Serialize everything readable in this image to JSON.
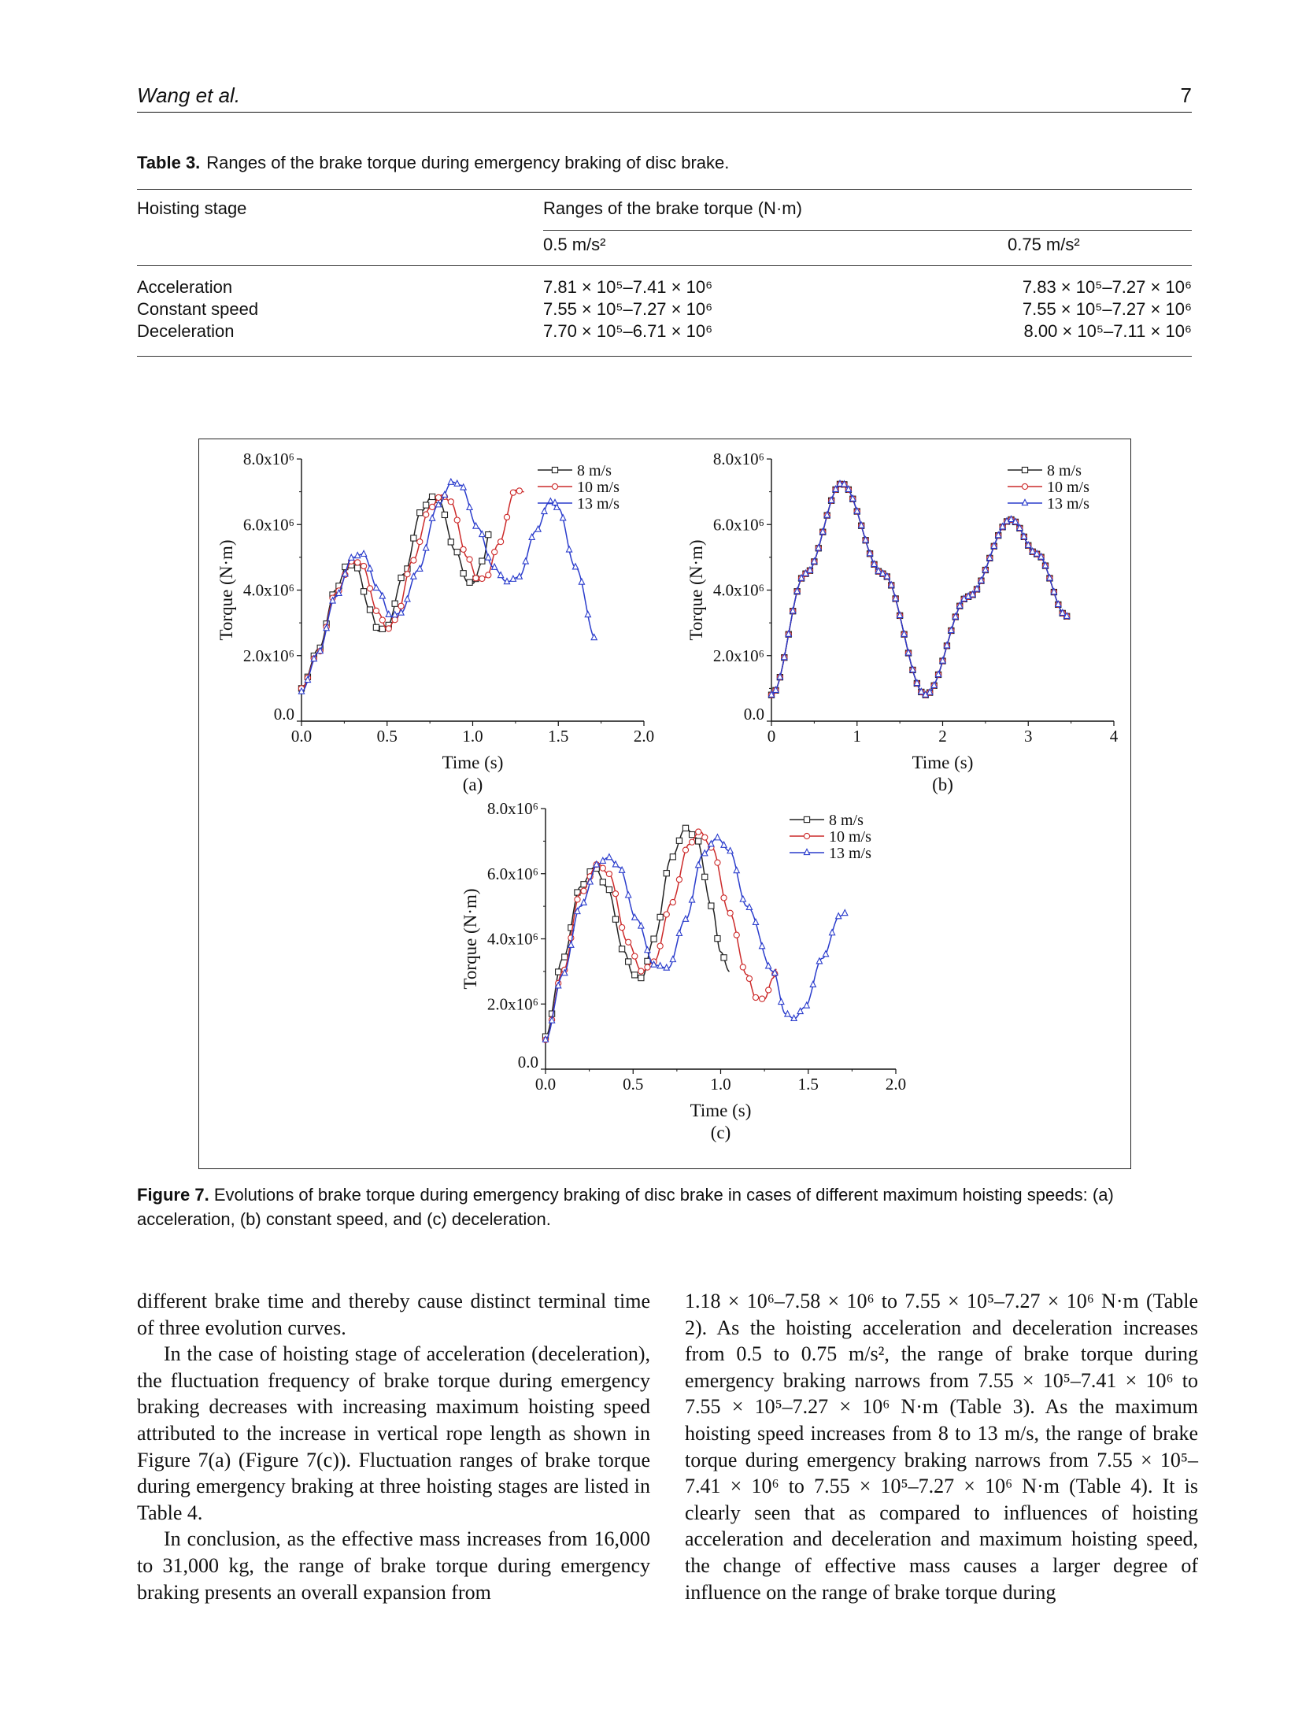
{
  "header": {
    "author": "Wang et al.",
    "page_number": "7"
  },
  "table3": {
    "label": "Table 3.",
    "caption": "Ranges of the brake torque during emergency braking of disc brake.",
    "col_stage": "Hoisting stage",
    "col_range": "Ranges of the brake torque (N·m)",
    "sub_a": "0.5 m/s²",
    "sub_b": "0.75 m/s²",
    "rows": [
      {
        "stage": "Acceleration",
        "a": "7.81 × 10⁵–7.41 × 10⁶",
        "b": "7.83 × 10⁵–7.27 × 10⁶"
      },
      {
        "stage": "Constant speed",
        "a": "7.55 × 10⁵–7.27 × 10⁶",
        "b": "7.55 × 10⁵–7.27 × 10⁶"
      },
      {
        "stage": "Deceleration",
        "a": "7.70 × 10⁵–6.71 × 10⁶",
        "b": "8.00 × 10⁵–7.11 × 10⁶"
      }
    ]
  },
  "figure7": {
    "label": "Figure 7.",
    "caption": "Evolutions of brake torque during emergency braking of disc brake in cases of different maximum hoisting speeds: (a) acceleration, (b) constant speed, and (c) deceleration."
  },
  "chart_data": [
    {
      "type": "line",
      "panel": "(a)",
      "xlabel": "Time (s)",
      "ylabel": "Torque (N·m)",
      "xlim": [
        0,
        2.0
      ],
      "ylim": [
        0,
        8000000
      ],
      "xticks": [
        "0.0",
        "0.5",
        "1.0",
        "1.5",
        "2.0"
      ],
      "yticks": [
        "0.0",
        "2.0x10⁶",
        "4.0x10⁶",
        "6.0x10⁶",
        "8.0x10⁶"
      ],
      "legend_position": "top-right",
      "series": [
        {
          "name": "8 m/s",
          "color": "#222222",
          "marker": "square",
          "t_end": 1.1,
          "waypoints": [
            [
              0,
              1000000.0
            ],
            [
              0.1,
              2200000.0
            ],
            [
              0.2,
              4000000.0
            ],
            [
              0.27,
              4800000.0
            ],
            [
              0.32,
              4700000.0
            ],
            [
              0.4,
              3400000.0
            ],
            [
              0.45,
              2750000.0
            ],
            [
              0.5,
              2900000.0
            ],
            [
              0.6,
              4500000.0
            ],
            [
              0.7,
              6400000.0
            ],
            [
              0.76,
              6850000.0
            ],
            [
              0.8,
              6750000.0
            ],
            [
              0.9,
              5200000.0
            ],
            [
              0.97,
              4250000.0
            ],
            [
              1.0,
              4200000.0
            ],
            [
              1.06,
              4900000.0
            ],
            [
              1.1,
              5800000.0
            ]
          ]
        },
        {
          "name": "10 m/s",
          "color": "#cc2a2a",
          "marker": "circle",
          "t_end": 1.3,
          "waypoints": [
            [
              0,
              1000000.0
            ],
            [
              0.1,
              2100000.0
            ],
            [
              0.2,
              3900000.0
            ],
            [
              0.3,
              4900000.0
            ],
            [
              0.35,
              4800000.0
            ],
            [
              0.45,
              3300000.0
            ],
            [
              0.5,
              2800000.0
            ],
            [
              0.55,
              3100000.0
            ],
            [
              0.65,
              4900000.0
            ],
            [
              0.75,
              6500000.0
            ],
            [
              0.82,
              6900000.0
            ],
            [
              0.87,
              6700000.0
            ],
            [
              0.97,
              5000000.0
            ],
            [
              1.03,
              4300000.0
            ],
            [
              1.08,
              4400000.0
            ],
            [
              1.15,
              5400000.0
            ],
            [
              1.25,
              7050000.0
            ],
            [
              1.3,
              7000000.0
            ]
          ]
        },
        {
          "name": "13 m/s",
          "color": "#2a3ccc",
          "marker": "triangle",
          "t_end": 1.72,
          "waypoints": [
            [
              0,
              900000.0
            ],
            [
              0.1,
              2100000.0
            ],
            [
              0.2,
              3800000.0
            ],
            [
              0.3,
              5000000.0
            ],
            [
              0.36,
              5100000.0
            ],
            [
              0.45,
              4000000.0
            ],
            [
              0.52,
              3200000.0
            ],
            [
              0.58,
              3300000.0
            ],
            [
              0.68,
              4600000.0
            ],
            [
              0.8,
              6600000.0
            ],
            [
              0.88,
              7300000.0
            ],
            [
              0.93,
              7200000.0
            ],
            [
              1.03,
              5900000.0
            ],
            [
              1.12,
              4700000.0
            ],
            [
              1.2,
              4250000.0
            ],
            [
              1.27,
              4400000.0
            ],
            [
              1.37,
              5800000.0
            ],
            [
              1.45,
              6700000.0
            ],
            [
              1.5,
              6500000.0
            ],
            [
              1.6,
              4700000.0
            ],
            [
              1.72,
              2500000.0
            ]
          ]
        }
      ]
    },
    {
      "type": "line",
      "panel": "(b)",
      "xlabel": "Time (s)",
      "ylabel": "Torque (N·m)",
      "xlim": [
        0,
        4
      ],
      "ylim": [
        0,
        8000000
      ],
      "xticks": [
        "0",
        "1",
        "2",
        "3",
        "4"
      ],
      "yticks": [
        "0.0",
        "2.0x10⁶",
        "4.0x10⁶",
        "6.0x10⁶",
        "8.0x10⁶"
      ],
      "legend_position": "top-right",
      "series": [
        {
          "name": "8 m/s",
          "color": "#222222",
          "marker": "square",
          "t_end": 3.45,
          "waypoints": [
            [
              0,
              800000.0
            ],
            [
              0.4,
              4500000.0
            ],
            [
              0.82,
              7250000.0
            ],
            [
              1.3,
              4500000.0
            ],
            [
              1.8,
              800000.0
            ],
            [
              2.3,
              3800000.0
            ],
            [
              2.8,
              6150000.0
            ],
            [
              3.1,
              5100000.0
            ],
            [
              3.45,
              3200000.0
            ]
          ]
        },
        {
          "name": "10 m/s",
          "color": "#cc2a2a",
          "marker": "circle",
          "t_end": 3.45,
          "waypoints": [
            [
              0,
              800000.0
            ],
            [
              0.4,
              4500000.0
            ],
            [
              0.82,
              7250000.0
            ],
            [
              1.3,
              4500000.0
            ],
            [
              1.8,
              800000.0
            ],
            [
              2.3,
              3800000.0
            ],
            [
              2.8,
              6150000.0
            ],
            [
              3.1,
              5100000.0
            ],
            [
              3.45,
              3200000.0
            ]
          ]
        },
        {
          "name": "13 m/s",
          "color": "#2a3ccc",
          "marker": "triangle",
          "t_end": 3.45,
          "waypoints": [
            [
              0,
              800000.0
            ],
            [
              0.4,
              4500000.0
            ],
            [
              0.82,
              7250000.0
            ],
            [
              1.3,
              4500000.0
            ],
            [
              1.8,
              800000.0
            ],
            [
              2.3,
              3800000.0
            ],
            [
              2.8,
              6150000.0
            ],
            [
              3.1,
              5100000.0
            ],
            [
              3.45,
              3200000.0
            ]
          ]
        }
      ]
    },
    {
      "type": "line",
      "panel": "(c)",
      "xlabel": "Time (s)",
      "ylabel": "Torque (N·m)",
      "xlim": [
        0,
        2.0
      ],
      "ylim": [
        0,
        8000000
      ],
      "xticks": [
        "0.0",
        "0.5",
        "1.0",
        "1.5",
        "2.0"
      ],
      "yticks": [
        "0.0",
        "2.0x10⁶",
        "4.0x10⁶",
        "6.0x10⁶",
        "8.0x10⁶"
      ],
      "legend_position": "top-right",
      "series": [
        {
          "name": "8 m/s",
          "color": "#222222",
          "marker": "square",
          "t_end": 1.05,
          "waypoints": [
            [
              0,
              1000000.0
            ],
            [
              0.1,
              3400000.0
            ],
            [
              0.2,
              5600000.0
            ],
            [
              0.28,
              6200000.0
            ],
            [
              0.35,
              5600000.0
            ],
            [
              0.45,
              3600000.0
            ],
            [
              0.5,
              2900000.0
            ],
            [
              0.55,
              2800000.0
            ],
            [
              0.62,
              4000000.0
            ],
            [
              0.72,
              6500000.0
            ],
            [
              0.8,
              7400000.0
            ],
            [
              0.86,
              7100000.0
            ],
            [
              0.95,
              5000000.0
            ],
            [
              1.0,
              3600000.0
            ],
            [
              1.05,
              3000000.0
            ]
          ]
        },
        {
          "name": "10 m/s",
          "color": "#cc2a2a",
          "marker": "circle",
          "t_end": 1.32,
          "waypoints": [
            [
              0,
              900000.0
            ],
            [
              0.1,
              3000000.0
            ],
            [
              0.2,
              5400000.0
            ],
            [
              0.3,
              6300000.0
            ],
            [
              0.36,
              6000000.0
            ],
            [
              0.47,
              3900000.0
            ],
            [
              0.55,
              3000000.0
            ],
            [
              0.62,
              3300000.0
            ],
            [
              0.72,
              5100000.0
            ],
            [
              0.82,
              6900000.0
            ],
            [
              0.88,
              7300000.0
            ],
            [
              0.95,
              6800000.0
            ],
            [
              1.05,
              4800000.0
            ],
            [
              1.15,
              2900000.0
            ],
            [
              1.2,
              2200000.0
            ],
            [
              1.25,
              2150000.0
            ],
            [
              1.3,
              2800000.0
            ],
            [
              1.32,
              3100000.0
            ]
          ]
        },
        {
          "name": "13 m/s",
          "color": "#2a3ccc",
          "marker": "triangle",
          "t_end": 1.72,
          "waypoints": [
            [
              0,
              900000.0
            ],
            [
              0.1,
              2900000.0
            ],
            [
              0.2,
              5000000.0
            ],
            [
              0.3,
              6300000.0
            ],
            [
              0.36,
              6500000.0
            ],
            [
              0.42,
              6200000.0
            ],
            [
              0.52,
              4600000.0
            ],
            [
              0.62,
              3200000.0
            ],
            [
              0.7,
              3100000.0
            ],
            [
              0.8,
              4600000.0
            ],
            [
              0.9,
              6600000.0
            ],
            [
              0.98,
              7100000.0
            ],
            [
              1.05,
              6700000.0
            ],
            [
              1.15,
              5000000.0
            ],
            [
              1.3,
              3000000.0
            ],
            [
              1.37,
              1700000.0
            ],
            [
              1.42,
              1550000.0
            ],
            [
              1.48,
              1900000.0
            ],
            [
              1.58,
              3400000.0
            ],
            [
              1.68,
              4700000.0
            ],
            [
              1.72,
              4800000.0
            ]
          ]
        }
      ]
    }
  ],
  "body": {
    "col1_p1": "different brake time and thereby cause distinct terminal time of three evolution curves.",
    "col1_p2": "In the case of hoisting stage of acceleration (deceleration), the fluctuation frequency of brake torque during emergency braking decreases with increasing maximum hoisting speed attributed to the increase in vertical rope length as shown in Figure 7(a) (Figure 7(c)). Fluctuation ranges of brake torque during emergency braking at three hoisting stages are listed in Table 4.",
    "col1_p3": "In conclusion, as the effective mass increases from 16,000 to 31,000 kg, the range of brake torque during emergency braking presents an overall expansion from",
    "col2_p1": "1.18 × 10⁶–7.58 × 10⁶ to 7.55 × 10⁵–7.27 × 10⁶ N·m (Table 2). As the hoisting acceleration and deceleration increases from 0.5 to 0.75 m/s², the range of brake torque during emergency braking narrows from 7.55 × 10⁵–7.41 × 10⁶ to 7.55 × 10⁵–7.27 × 10⁶ N·m (Table 3). As the maximum hoisting speed increases from 8 to 13 m/s, the range of brake torque during emergency braking narrows from 7.55 × 10⁵–7.41 × 10⁶ to 7.55 × 10⁵–7.27 × 10⁶ N·m (Table 4). It is clearly seen that as compared to influences of hoisting acceleration and deceleration and maximum hoisting speed, the change of effective mass causes a larger degree of influence on the range of brake torque during"
  }
}
